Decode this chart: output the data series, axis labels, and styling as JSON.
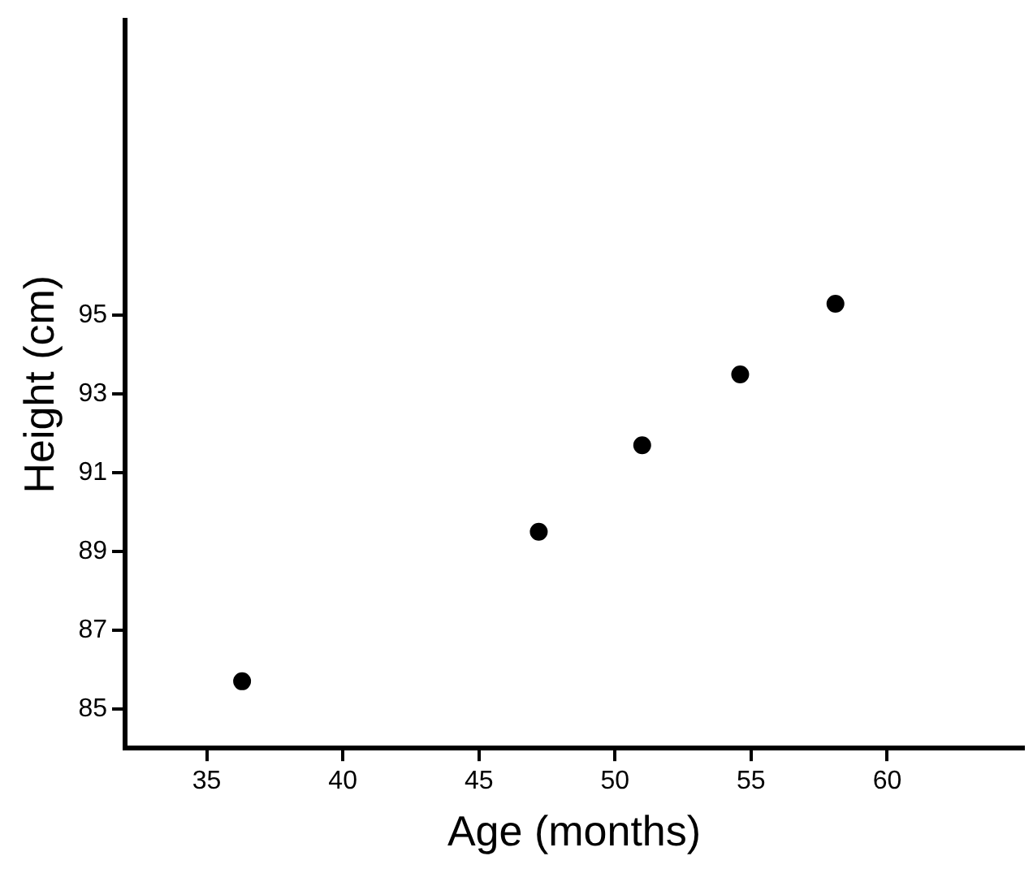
{
  "chart_data": {
    "type": "scatter",
    "xlabel": "Age (months)",
    "ylabel": "Height (cm)",
    "x": [
      36.3,
      47.2,
      51,
      54.6,
      58.1
    ],
    "values": [
      85.7,
      89.5,
      91.7,
      93.5,
      95.3
    ],
    "color": "#000000",
    "marker": "circle",
    "grid": false,
    "legend": false,
    "xlim": [
      32,
      65
    ],
    "xticks": [
      35,
      40,
      45,
      50,
      55,
      60
    ],
    "ylim": [
      84,
      102.5
    ],
    "yticks": [
      85,
      87,
      89,
      91,
      93,
      95
    ]
  }
}
